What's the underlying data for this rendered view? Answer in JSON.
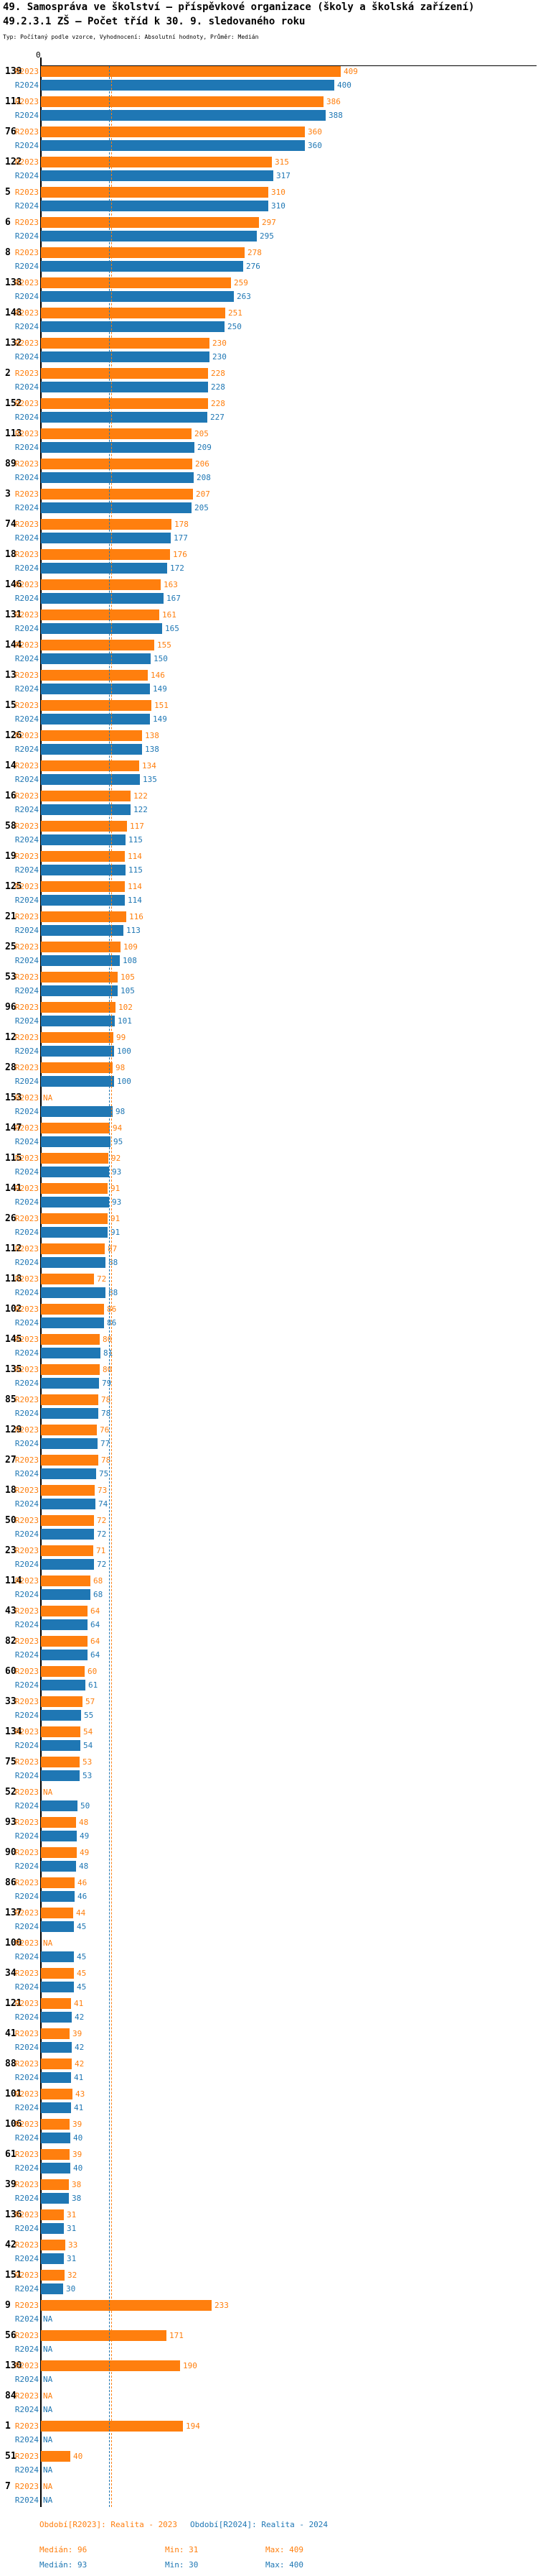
{
  "title": {
    "line1": "49. Samospráva ve školství – příspěvkové organizace (školy a školská zařízení)",
    "line2": "49.2.3.1 ZŠ – Počet tříd k 30. 9. sledovaného roku"
  },
  "subtitle": "Typ: Počítaný podle vzorce, Vyhodnocení: Absolutní hodnoty, Průměr: Medián",
  "axis": {
    "zero_label": "0"
  },
  "na_label": "NA",
  "colors": {
    "r2023": "#ff7f0e",
    "r2024": "#1f77b4"
  },
  "chart_data": {
    "type": "bar",
    "orientation": "horizontal",
    "categories": [
      139,
      111,
      76,
      122,
      5,
      6,
      8,
      138,
      148,
      132,
      2,
      152,
      113,
      89,
      3,
      74,
      18,
      146,
      131,
      144,
      13,
      15,
      126,
      14,
      16,
      58,
      19,
      125,
      21,
      25,
      53,
      96,
      12,
      28,
      153,
      147,
      115,
      141,
      26,
      112,
      118,
      102,
      145,
      135,
      85,
      129,
      27,
      18,
      50,
      23,
      114,
      43,
      82,
      60,
      33,
      134,
      75,
      52,
      93,
      90,
      86,
      137,
      100,
      34,
      121,
      41,
      88,
      101,
      106,
      61,
      39,
      136,
      42,
      151,
      9,
      56,
      130,
      84,
      1,
      51,
      7
    ],
    "series": [
      {
        "name": "R2023",
        "values": [
          409,
          386,
          360,
          315,
          310,
          297,
          278,
          259,
          251,
          230,
          228,
          228,
          205,
          206,
          207,
          178,
          176,
          163,
          161,
          155,
          146,
          151,
          138,
          134,
          122,
          117,
          114,
          114,
          116,
          109,
          105,
          102,
          99,
          98,
          null,
          94,
          92,
          91,
          91,
          87,
          72,
          86,
          80,
          80,
          78,
          76,
          78,
          73,
          72,
          71,
          68,
          64,
          64,
          60,
          57,
          54,
          53,
          null,
          48,
          49,
          46,
          44,
          null,
          45,
          41,
          39,
          42,
          43,
          39,
          39,
          38,
          31,
          33,
          32,
          233,
          171,
          190,
          null,
          194,
          40,
          null
        ]
      },
      {
        "name": "R2024",
        "values": [
          400,
          388,
          360,
          317,
          310,
          295,
          276,
          263,
          250,
          230,
          228,
          227,
          209,
          208,
          205,
          177,
          172,
          167,
          165,
          150,
          149,
          149,
          138,
          135,
          122,
          115,
          115,
          114,
          113,
          108,
          105,
          101,
          100,
          100,
          98,
          95,
          93,
          93,
          91,
          88,
          88,
          86,
          81,
          79,
          78,
          77,
          75,
          74,
          72,
          72,
          68,
          64,
          64,
          61,
          55,
          54,
          53,
          50,
          49,
          48,
          46,
          45,
          45,
          45,
          42,
          42,
          41,
          41,
          40,
          40,
          38,
          31,
          31,
          30,
          null,
          null,
          null,
          null,
          null,
          null,
          null
        ]
      }
    ],
    "xmax": 409,
    "medians": {
      "r2023": 96,
      "r2024": 93
    },
    "legend_position": "bottom",
    "grid": false
  },
  "legend": {
    "r2023": {
      "period": "Období[R2023]: Realita - 2023",
      "median": "Medián: 96",
      "min": "Min: 31",
      "max": "Max: 409"
    },
    "r2024": {
      "period": "Období[R2024]: Realita - 2024",
      "median": "Medián: 93",
      "min": "Min: 30",
      "max": "Max: 400"
    }
  }
}
